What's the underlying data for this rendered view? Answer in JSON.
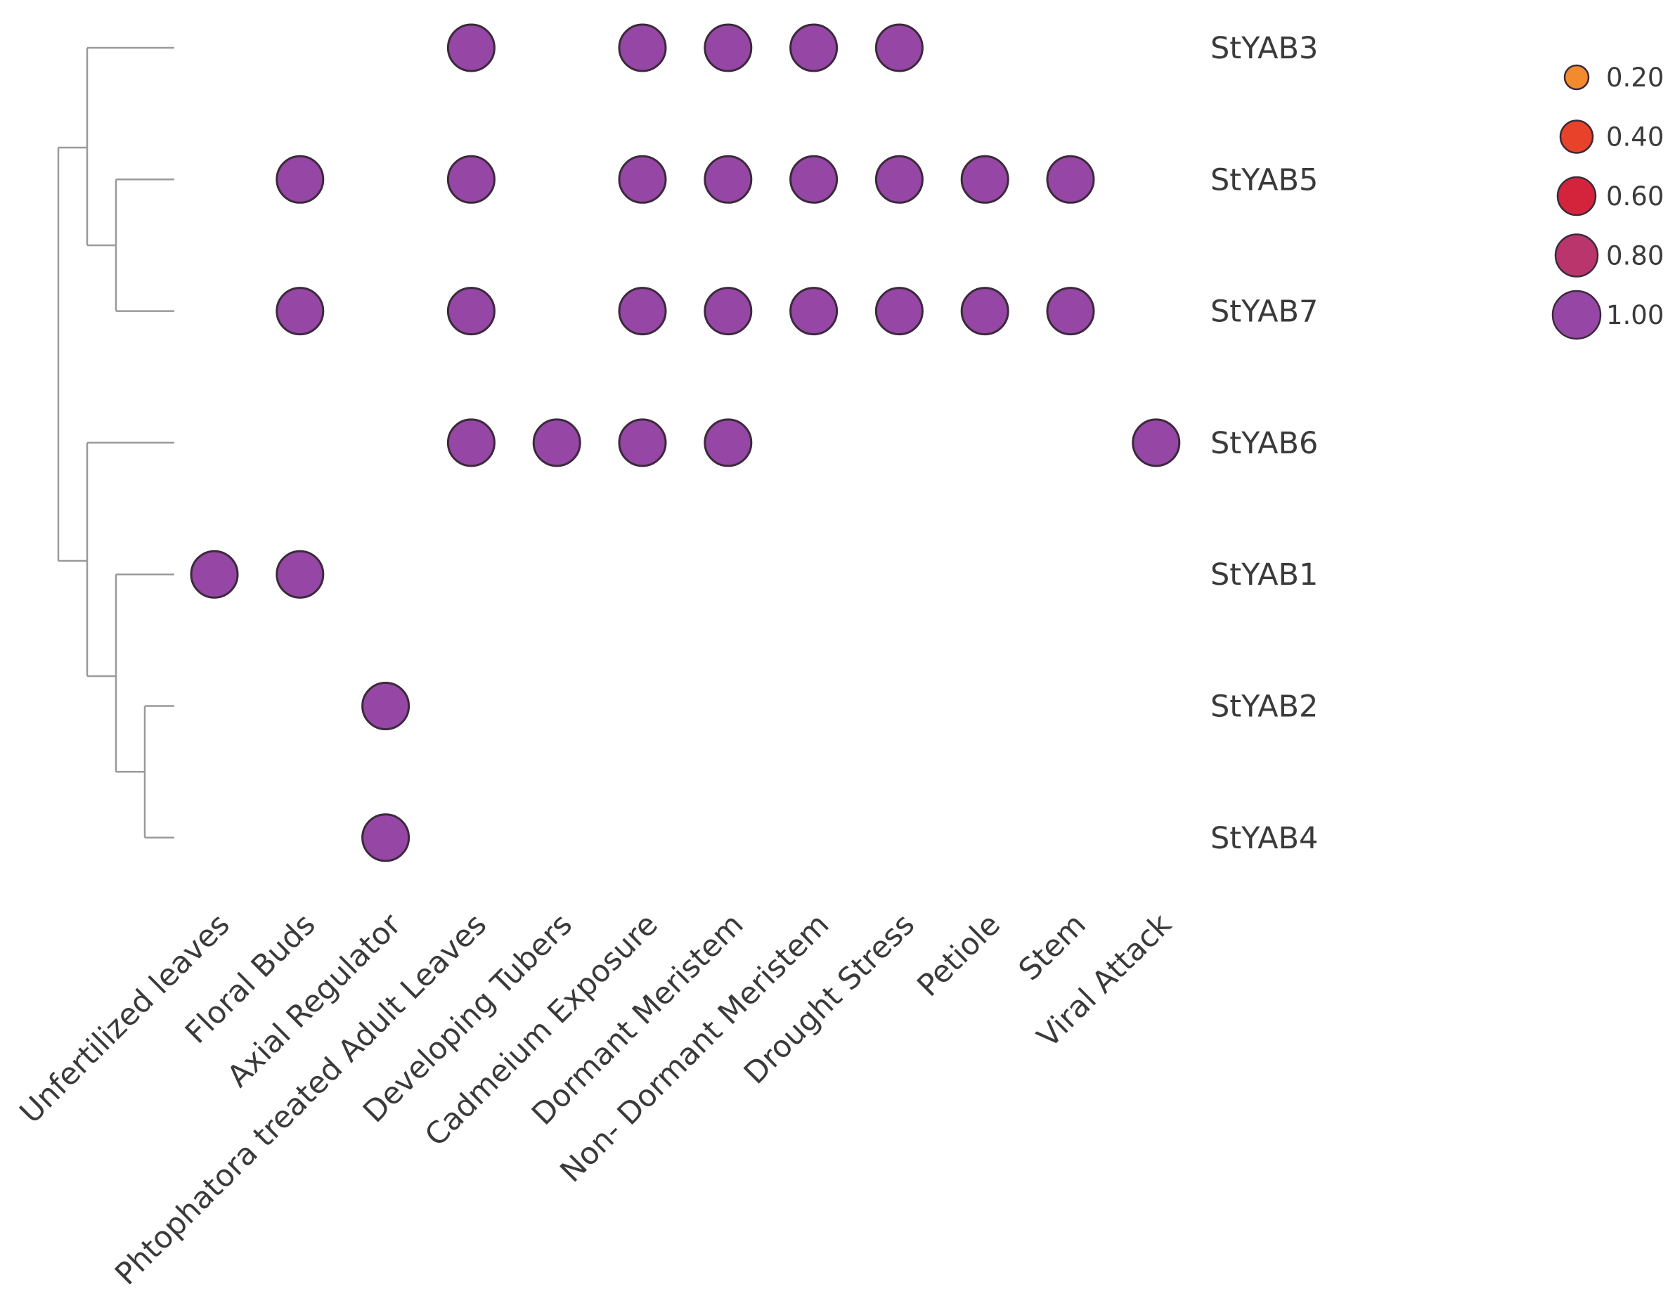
{
  "chart_data": {
    "type": "dot-heatmap",
    "title": "",
    "genes": [
      "StYAB3",
      "StYAB5",
      "StYAB7",
      "StYAB6",
      "StYAB1",
      "StYAB2",
      "StYAB4"
    ],
    "conditions": [
      "Unfertilized leaves",
      "Floral Buds",
      "Axial Regulator",
      "Phtophatora treated Adult Leaves",
      "Developing Tubers",
      "Cadmeium Exposure",
      "Dormant Meristem",
      "Non- Dormant Meristem",
      "Drought Stress",
      "Petiole",
      "Stem",
      "Viral Attack"
    ],
    "values": [
      [
        null,
        null,
        null,
        1.0,
        null,
        1.0,
        1.0,
        1.0,
        1.0,
        null,
        null,
        null
      ],
      [
        null,
        1.0,
        null,
        1.0,
        null,
        1.0,
        1.0,
        1.0,
        1.0,
        1.0,
        1.0,
        null
      ],
      [
        null,
        1.0,
        null,
        1.0,
        null,
        1.0,
        1.0,
        1.0,
        1.0,
        1.0,
        1.0,
        null
      ],
      [
        null,
        null,
        null,
        1.0,
        1.0,
        1.0,
        1.0,
        null,
        null,
        null,
        null,
        1.0
      ],
      [
        1.0,
        1.0,
        null,
        null,
        null,
        null,
        null,
        null,
        null,
        null,
        null,
        null
      ],
      [
        null,
        null,
        1.0,
        null,
        null,
        null,
        null,
        null,
        null,
        null,
        null,
        null
      ],
      [
        null,
        null,
        1.0,
        null,
        null,
        null,
        null,
        null,
        null,
        null,
        null,
        null
      ]
    ],
    "legend": [
      {
        "value": 0.2,
        "label": "0.20",
        "color": "#f28a2e"
      },
      {
        "value": 0.4,
        "label": "0.40",
        "color": "#e8432a"
      },
      {
        "value": 0.6,
        "label": "0.60",
        "color": "#d4243c"
      },
      {
        "value": 0.8,
        "label": "0.80",
        "color": "#b9356b"
      },
      {
        "value": 1.0,
        "label": "1.00",
        "color": "#9646a5"
      }
    ],
    "dendrogram": "((StYAB3,(StYAB5,StYAB7)),(StYAB6,(StYAB1,(StYAB2,StYAB4))))"
  }
}
